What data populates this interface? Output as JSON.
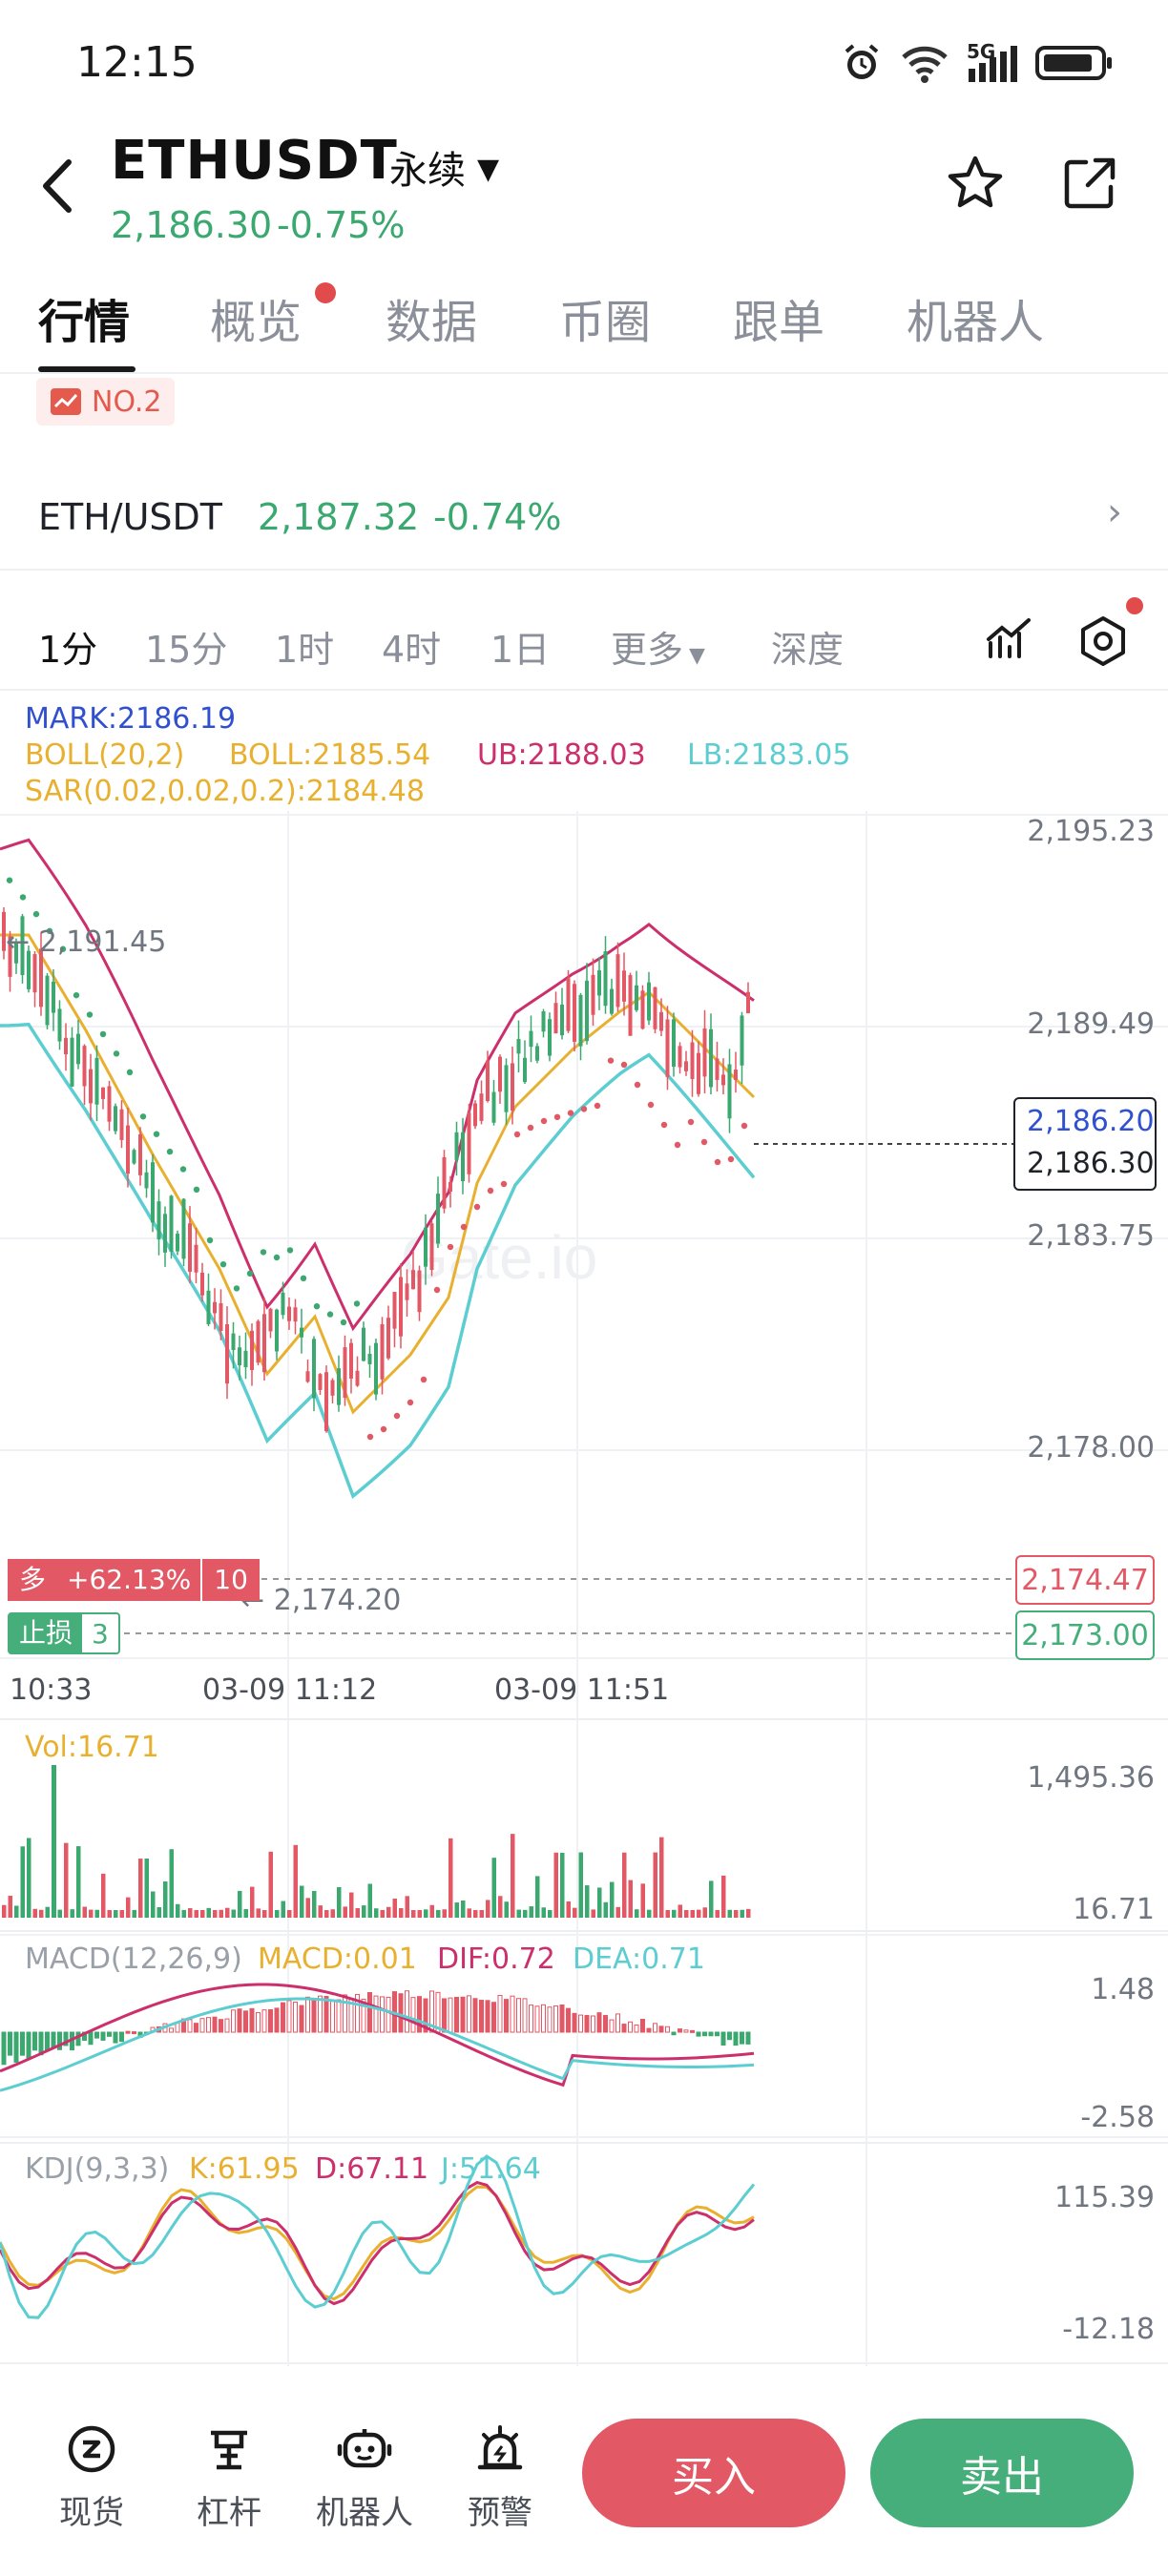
{
  "status_bar": {
    "time": "12:15",
    "network": "5G"
  },
  "header": {
    "symbol": "ETHUSDT",
    "contract_type": "永续",
    "last_price": "2,186.30",
    "change_pct": "-0.75%"
  },
  "tabs": [
    {
      "label": "行情",
      "active": true
    },
    {
      "label": "概览",
      "has_dot": true
    },
    {
      "label": "数据"
    },
    {
      "label": "币圈"
    },
    {
      "label": "跟单"
    },
    {
      "label": "机器人"
    }
  ],
  "rank_badge": "NO.2",
  "ticker": {
    "pair": "ETH/USDT",
    "price": "2,187.32",
    "change": "-0.74%"
  },
  "intervals": [
    {
      "label": "1分",
      "active": true
    },
    {
      "label": "15分"
    },
    {
      "label": "1时"
    },
    {
      "label": "4时"
    },
    {
      "label": "1日"
    },
    {
      "label": "更多"
    },
    {
      "label": "深度"
    }
  ],
  "main_legend": {
    "mark": "MARK:2186.19",
    "boll_params": "BOLL(20,2)",
    "boll": "BOLL:2185.54",
    "ub": "UB:2188.03",
    "lb": "LB:2183.05",
    "sar": "SAR(0.02,0.02,0.2):2184.48"
  },
  "price_axis": [
    "2,195.23",
    "2,189.49",
    "2,183.75",
    "2,178.00"
  ],
  "current_price_box": {
    "mark": "2,186.20",
    "last": "2,186.30"
  },
  "high_label": "2,191.45",
  "low_label": "2,174.20",
  "position": {
    "side": "多",
    "pnl": "+62.13%",
    "leverage": "10",
    "entry": "2,174.47"
  },
  "stop_loss": {
    "label": "止损",
    "count": "3",
    "price": "2,173.00"
  },
  "time_axis": [
    "10:33",
    "03-09 11:12",
    "03-09 11:51"
  ],
  "volume": {
    "legend": "Vol:16.71",
    "axis_top": "1,495.36",
    "axis_bottom": "16.71"
  },
  "macd": {
    "params": "MACD(12,26,9)",
    "macd": "MACD:0.01",
    "dif": "DIF:0.72",
    "dea": "DEA:0.71",
    "axis_top": "1.48",
    "axis_bottom": "-2.58"
  },
  "kdj": {
    "params": "KDJ(9,3,3)",
    "k": "K:61.95",
    "d": "D:67.11",
    "j": "J:51.64",
    "axis_top": "115.39",
    "axis_bottom": "-12.18"
  },
  "bottom_nav": [
    {
      "label": "现货",
      "icon": "spot-icon"
    },
    {
      "label": "杠杆",
      "icon": "leverage-icon"
    },
    {
      "label": "机器人",
      "icon": "robot-icon"
    },
    {
      "label": "预警",
      "icon": "alarm-icon"
    }
  ],
  "actions": {
    "buy": "买入",
    "sell": "卖出"
  },
  "colors": {
    "up": "#3ba870",
    "down": "#e25864",
    "boll_mid": "#e8b02e",
    "boll_upper": "#cc2f6c",
    "boll_lower": "#5ccdd0",
    "mark": "#3050d0"
  }
}
